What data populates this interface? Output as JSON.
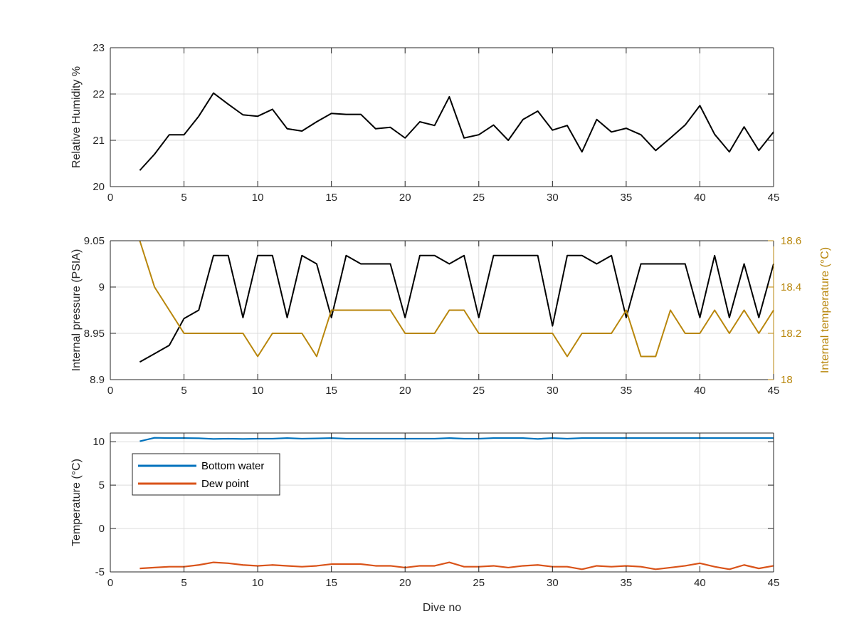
{
  "chart_data": [
    {
      "type": "line",
      "title": "",
      "xlabel": "",
      "ylabel": "Relative Humidity %",
      "xlim": [
        0,
        45
      ],
      "ylim": [
        20,
        23
      ],
      "xticks": [
        "0",
        "5",
        "10",
        "15",
        "20",
        "25",
        "30",
        "35",
        "40",
        "45"
      ],
      "yticks": [
        "20",
        "21",
        "22",
        "23"
      ],
      "grid": true,
      "series": [
        {
          "color": "#000000",
          "x": [
            2,
            3,
            4,
            5,
            6,
            7,
            8,
            9,
            10,
            11,
            12,
            13,
            14,
            15,
            16,
            17,
            18,
            19,
            20,
            21,
            22,
            23,
            24,
            25,
            26,
            27,
            28,
            29,
            30,
            31,
            32,
            33,
            34,
            35,
            36,
            37,
            38,
            39,
            40,
            41,
            42,
            43,
            44,
            45
          ],
          "y": [
            20.35,
            20.7,
            21.12,
            21.12,
            21.52,
            22.02,
            21.78,
            21.55,
            21.52,
            21.67,
            21.25,
            21.2,
            21.4,
            21.58,
            21.56,
            21.56,
            21.25,
            21.28,
            21.05,
            21.4,
            21.32,
            21.94,
            21.05,
            21.12,
            21.33,
            21.0,
            21.45,
            21.63,
            21.22,
            21.32,
            20.75,
            21.45,
            21.18,
            21.26,
            21.12,
            20.78,
            21.05,
            21.33,
            21.75,
            21.13,
            20.75,
            21.29,
            20.78,
            21.18
          ]
        }
      ]
    },
    {
      "type": "line",
      "title": "",
      "xlabel": "",
      "ylabel": "Internal pressure (PSIA)",
      "ylabel_right": "Internal temperature (°C)",
      "xlim": [
        0,
        45
      ],
      "ylim": [
        8.9,
        9.05
      ],
      "ylim_right": [
        18,
        18.6
      ],
      "xticks": [
        "0",
        "5",
        "10",
        "15",
        "20",
        "25",
        "30",
        "35",
        "40",
        "45"
      ],
      "yticks": [
        "8.9",
        "8.95",
        "9",
        "9.05"
      ],
      "yticks_right": [
        "18",
        "18.2",
        "18.4",
        "18.6"
      ],
      "grid": true,
      "series": [
        {
          "axis": "left",
          "color": "#000000",
          "x": [
            2,
            3,
            4,
            5,
            6,
            7,
            8,
            9,
            10,
            11,
            12,
            13,
            14,
            15,
            16,
            17,
            18,
            19,
            20,
            21,
            22,
            23,
            24,
            25,
            26,
            27,
            28,
            29,
            30,
            31,
            32,
            33,
            34,
            35,
            36,
            37,
            38,
            39,
            40,
            41,
            42,
            43,
            44,
            45
          ],
          "y": [
            8.919,
            8.928,
            8.937,
            8.966,
            8.975,
            9.034,
            9.034,
            8.967,
            9.034,
            9.034,
            8.967,
            9.034,
            9.025,
            8.967,
            9.034,
            9.025,
            9.025,
            9.025,
            8.967,
            9.034,
            9.034,
            9.025,
            9.034,
            8.967,
            9.034,
            9.034,
            9.034,
            9.034,
            8.958,
            9.034,
            9.034,
            9.025,
            9.034,
            8.967,
            9.025,
            9.025,
            9.025,
            9.025,
            8.967,
            9.034,
            8.967,
            9.025,
            8.967,
            9.025
          ]
        },
        {
          "axis": "right",
          "color": "#B8860B",
          "x": [
            2,
            3,
            4,
            5,
            6,
            7,
            8,
            9,
            10,
            11,
            12,
            13,
            14,
            15,
            16,
            17,
            18,
            19,
            20,
            21,
            22,
            23,
            24,
            25,
            26,
            27,
            28,
            29,
            30,
            31,
            32,
            33,
            34,
            35,
            36,
            37,
            38,
            39,
            40,
            41,
            42,
            43,
            44,
            45
          ],
          "y": [
            18.6,
            18.4,
            18.3,
            18.2,
            18.2,
            18.2,
            18.2,
            18.2,
            18.1,
            18.2,
            18.2,
            18.2,
            18.1,
            18.3,
            18.3,
            18.3,
            18.3,
            18.3,
            18.2,
            18.2,
            18.2,
            18.3,
            18.3,
            18.2,
            18.2,
            18.2,
            18.2,
            18.2,
            18.2,
            18.1,
            18.2,
            18.2,
            18.2,
            18.3,
            18.1,
            18.1,
            18.3,
            18.2,
            18.2,
            18.3,
            18.2,
            18.3,
            18.2,
            18.3
          ]
        }
      ]
    },
    {
      "type": "line",
      "title": "",
      "xlabel": "Dive no",
      "ylabel": "Temperature (°C)",
      "xlim": [
        0,
        45
      ],
      "ylim": [
        -5,
        11
      ],
      "xticks": [
        "0",
        "5",
        "10",
        "15",
        "20",
        "25",
        "30",
        "35",
        "40",
        "45"
      ],
      "yticks": [
        "-5",
        "0",
        "5",
        "10"
      ],
      "grid": true,
      "legend": "top-left",
      "series": [
        {
          "name": "Bottom water",
          "color": "#0072BD",
          "x": [
            2,
            3,
            4,
            5,
            6,
            7,
            8,
            9,
            10,
            11,
            12,
            13,
            14,
            15,
            16,
            17,
            18,
            19,
            20,
            21,
            22,
            23,
            24,
            25,
            26,
            27,
            28,
            29,
            30,
            31,
            32,
            33,
            34,
            35,
            36,
            37,
            38,
            39,
            40,
            41,
            42,
            43,
            44,
            45
          ],
          "y": [
            10.05,
            10.45,
            10.42,
            10.42,
            10.4,
            10.32,
            10.35,
            10.32,
            10.35,
            10.35,
            10.42,
            10.35,
            10.38,
            10.42,
            10.35,
            10.35,
            10.35,
            10.35,
            10.35,
            10.35,
            10.35,
            10.42,
            10.35,
            10.35,
            10.42,
            10.42,
            10.42,
            10.32,
            10.42,
            10.35,
            10.42,
            10.42,
            10.42,
            10.42,
            10.42,
            10.42,
            10.42,
            10.42,
            10.42,
            10.42,
            10.42,
            10.42,
            10.42,
            10.42
          ]
        },
        {
          "name": "Dew point",
          "color": "#D95319",
          "x": [
            2,
            3,
            4,
            5,
            6,
            7,
            8,
            9,
            10,
            11,
            12,
            13,
            14,
            15,
            16,
            17,
            18,
            19,
            20,
            21,
            22,
            23,
            24,
            25,
            26,
            27,
            28,
            29,
            30,
            31,
            32,
            33,
            34,
            35,
            36,
            37,
            38,
            39,
            40,
            41,
            42,
            43,
            44,
            45
          ],
          "y": [
            -4.6,
            -4.5,
            -4.4,
            -4.4,
            -4.2,
            -3.9,
            -4.0,
            -4.2,
            -4.3,
            -4.2,
            -4.3,
            -4.4,
            -4.3,
            -4.1,
            -4.1,
            -4.1,
            -4.3,
            -4.3,
            -4.5,
            -4.3,
            -4.3,
            -3.9,
            -4.4,
            -4.4,
            -4.3,
            -4.5,
            -4.3,
            -4.2,
            -4.4,
            -4.4,
            -4.7,
            -4.3,
            -4.4,
            -4.3,
            -4.4,
            -4.7,
            -4.5,
            -4.3,
            -4.0,
            -4.4,
            -4.7,
            -4.2,
            -4.6,
            -4.3
          ]
        }
      ]
    }
  ]
}
